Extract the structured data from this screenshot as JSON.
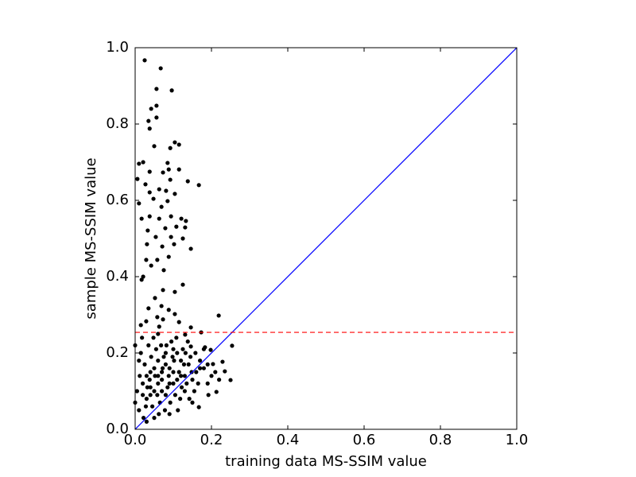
{
  "chart_data": {
    "type": "scatter",
    "x_label": "training data MS-SSIM value",
    "y_label": "sample MS-SSIM value",
    "xlim": [
      0,
      1
    ],
    "ylim": [
      0,
      1
    ],
    "xticks": [
      {
        "value": 0,
        "label": "0.0"
      },
      0.2,
      0.4,
      0.6,
      0.8,
      {
        "value": 1,
        "label": "1.0"
      }
    ],
    "yticks": [
      {
        "value": 0,
        "label": "0.0"
      },
      0.2,
      0.4,
      0.6,
      0.8,
      {
        "value": 1,
        "label": "1.0"
      }
    ],
    "series": [
      {
        "color": "#000000",
        "x": [
          0.025,
          0.067,
          0.056,
          0.096,
          0.042,
          0.056,
          0.056,
          0.035,
          0.038,
          0.104,
          0.115,
          0.05,
          0.092,
          0.167,
          0.01,
          0.021,
          0.085,
          0.088,
          0.115,
          0.038,
          0.073,
          0.006,
          0.092,
          0.138,
          0.027,
          0.063,
          0.081,
          0.104,
          0.038,
          0.048,
          0.085,
          0.01,
          0.069,
          0.017,
          0.038,
          0.063,
          0.094,
          0.121,
          0.133,
          0.033,
          0.079,
          0.108,
          0.131,
          0.054,
          0.094,
          0.125,
          0.031,
          0.071,
          0.102,
          0.146,
          0.029,
          0.058,
          0.088,
          0.042,
          0.075,
          0.021,
          0.017,
          0.125,
          0.073,
          0.104,
          0.052,
          0.035,
          0.069,
          0.088,
          0.058,
          0.104,
          0.219,
          0.029,
          0.073,
          0.115,
          0.015,
          0.063,
          0.146,
          0.173,
          0.131,
          0.254,
          0.198,
          0.229,
          0.235,
          0.25,
          0.213,
          0.192,
          0.167,
          0.183,
          0.204,
          0.146,
          0.01,
          0.02,
          0.03,
          0.04,
          0.05,
          0.06,
          0.07,
          0.08,
          0.09,
          0.1,
          0.11,
          0.12,
          0.13,
          0.14,
          0.15,
          0.16,
          0.17,
          0.18,
          0.19,
          0.2,
          0.015,
          0.025,
          0.035,
          0.045,
          0.055,
          0.065,
          0.075,
          0.085,
          0.095,
          0.105,
          0.115,
          0.125,
          0.135,
          0.145,
          0.155,
          0.165,
          0.005,
          0.012,
          0.022,
          0.032,
          0.042,
          0.052,
          0.062,
          0.072,
          0.082,
          0.092,
          0.102,
          0.112,
          0.122,
          0.132,
          0.142,
          0.018,
          0.028,
          0.038,
          0.048,
          0.058,
          0.068,
          0.078,
          0.088,
          0.098,
          0.108,
          0.118,
          0.128,
          0.138,
          0.148,
          0.158,
          0.03,
          0.05,
          0.07,
          0.09,
          0.06,
          0.04,
          0.08,
          0.05,
          0.07,
          0.06,
          0.09,
          0.1,
          0.04,
          0.03,
          0.02,
          0.11,
          0.12,
          0.08,
          0.06,
          0.1,
          0.01,
          0,
          0,
          0.13,
          0.15,
          0.17,
          0.19,
          0.21,
          0.22,
          0.18
        ],
        "values": [
          0.967,
          0.946,
          0.892,
          0.888,
          0.84,
          0.848,
          0.817,
          0.808,
          0.788,
          0.752,
          0.746,
          0.742,
          0.737,
          0.64,
          0.696,
          0.7,
          0.698,
          0.681,
          0.681,
          0.675,
          0.673,
          0.656,
          0.654,
          0.65,
          0.642,
          0.629,
          0.625,
          0.617,
          0.621,
          0.604,
          0.598,
          0.592,
          0.583,
          0.552,
          0.558,
          0.552,
          0.558,
          0.552,
          0.546,
          0.521,
          0.527,
          0.531,
          0.529,
          0.504,
          0.504,
          0.5,
          0.485,
          0.479,
          0.485,
          0.473,
          0.444,
          0.444,
          0.452,
          0.429,
          0.417,
          0.4,
          0.392,
          0.379,
          0.365,
          0.36,
          0.344,
          0.317,
          0.323,
          0.313,
          0.294,
          0.302,
          0.298,
          0.283,
          0.288,
          0.281,
          0.273,
          0.269,
          0.267,
          0.254,
          0.248,
          0.219,
          0.208,
          0.177,
          0.152,
          0.129,
          0.098,
          0.09,
          0.058,
          0.215,
          0.171,
          0.217,
          0.05,
          0.12,
          0.08,
          0.15,
          0.1,
          0.18,
          0.13,
          0.09,
          0.16,
          0.12,
          0.2,
          0.14,
          0.1,
          0.17,
          0.13,
          0.15,
          0.18,
          0.16,
          0.12,
          0.14,
          0.2,
          0.17,
          0.22,
          0.06,
          0.21,
          0.07,
          0.19,
          0.11,
          0.23,
          0.09,
          0.15,
          0.21,
          0.12,
          0.19,
          0.1,
          0.12,
          0.1,
          0.14,
          0.03,
          0.11,
          0.19,
          0.14,
          0.04,
          0.16,
          0.22,
          0.07,
          0.18,
          0.05,
          0.11,
          0.2,
          0.08,
          0.24,
          0.06,
          0.13,
          0.24,
          0.09,
          0.22,
          0.05,
          0.14,
          0.19,
          0.24,
          0.08,
          0.17,
          0.23,
          0.15,
          0.2,
          0.02,
          0.03,
          0.1,
          0.04,
          0.12,
          0.11,
          0.17,
          0.16,
          0.15,
          0.14,
          0.12,
          0.15,
          0.09,
          0.14,
          0.09,
          0.13,
          0.18,
          0.2,
          0.25,
          0.21,
          0.18,
          0.07,
          0.22,
          0.14,
          0.07,
          0.16,
          0.17,
          0.15,
          0.13,
          0.21
        ]
      }
    ],
    "lines": [
      {
        "x": [
          0,
          1
        ],
        "values": [
          0,
          1
        ],
        "color": "#0000ff",
        "dashed": false
      },
      {
        "x": [
          0,
          1
        ],
        "values": [
          0.254,
          0.254
        ],
        "color": "#ff0000",
        "dashed": true
      }
    ]
  }
}
